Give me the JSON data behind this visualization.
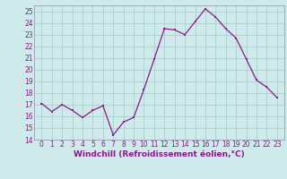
{
  "x": [
    0,
    1,
    2,
    3,
    4,
    5,
    6,
    7,
    8,
    9,
    10,
    11,
    12,
    13,
    14,
    15,
    16,
    17,
    18,
    19,
    20,
    21,
    22,
    23
  ],
  "y": [
    17.1,
    16.4,
    17.0,
    16.5,
    15.9,
    16.5,
    16.9,
    14.4,
    15.5,
    15.9,
    18.3,
    20.9,
    23.5,
    23.4,
    23.0,
    24.1,
    25.2,
    24.5,
    23.5,
    22.7,
    20.9,
    19.1,
    18.5,
    17.6
  ],
  "line_color": "#8b1a8b",
  "marker": "s",
  "markersize": 1.8,
  "linewidth": 0.9,
  "xlabel": "Windchill (Refroidissement éolien,°C)",
  "xlabel_fontsize": 6.5,
  "ylim": [
    14,
    25.5
  ],
  "yticks": [
    14,
    15,
    16,
    17,
    18,
    19,
    20,
    21,
    22,
    23,
    24,
    25
  ],
  "xticks": [
    0,
    1,
    2,
    3,
    4,
    5,
    6,
    7,
    8,
    9,
    10,
    11,
    12,
    13,
    14,
    15,
    16,
    17,
    18,
    19,
    20,
    21,
    22,
    23
  ],
  "bg_color": "#ceeaea",
  "grid_color": "#aacece",
  "tick_fontsize": 5.5,
  "spine_color": "#9090aa"
}
